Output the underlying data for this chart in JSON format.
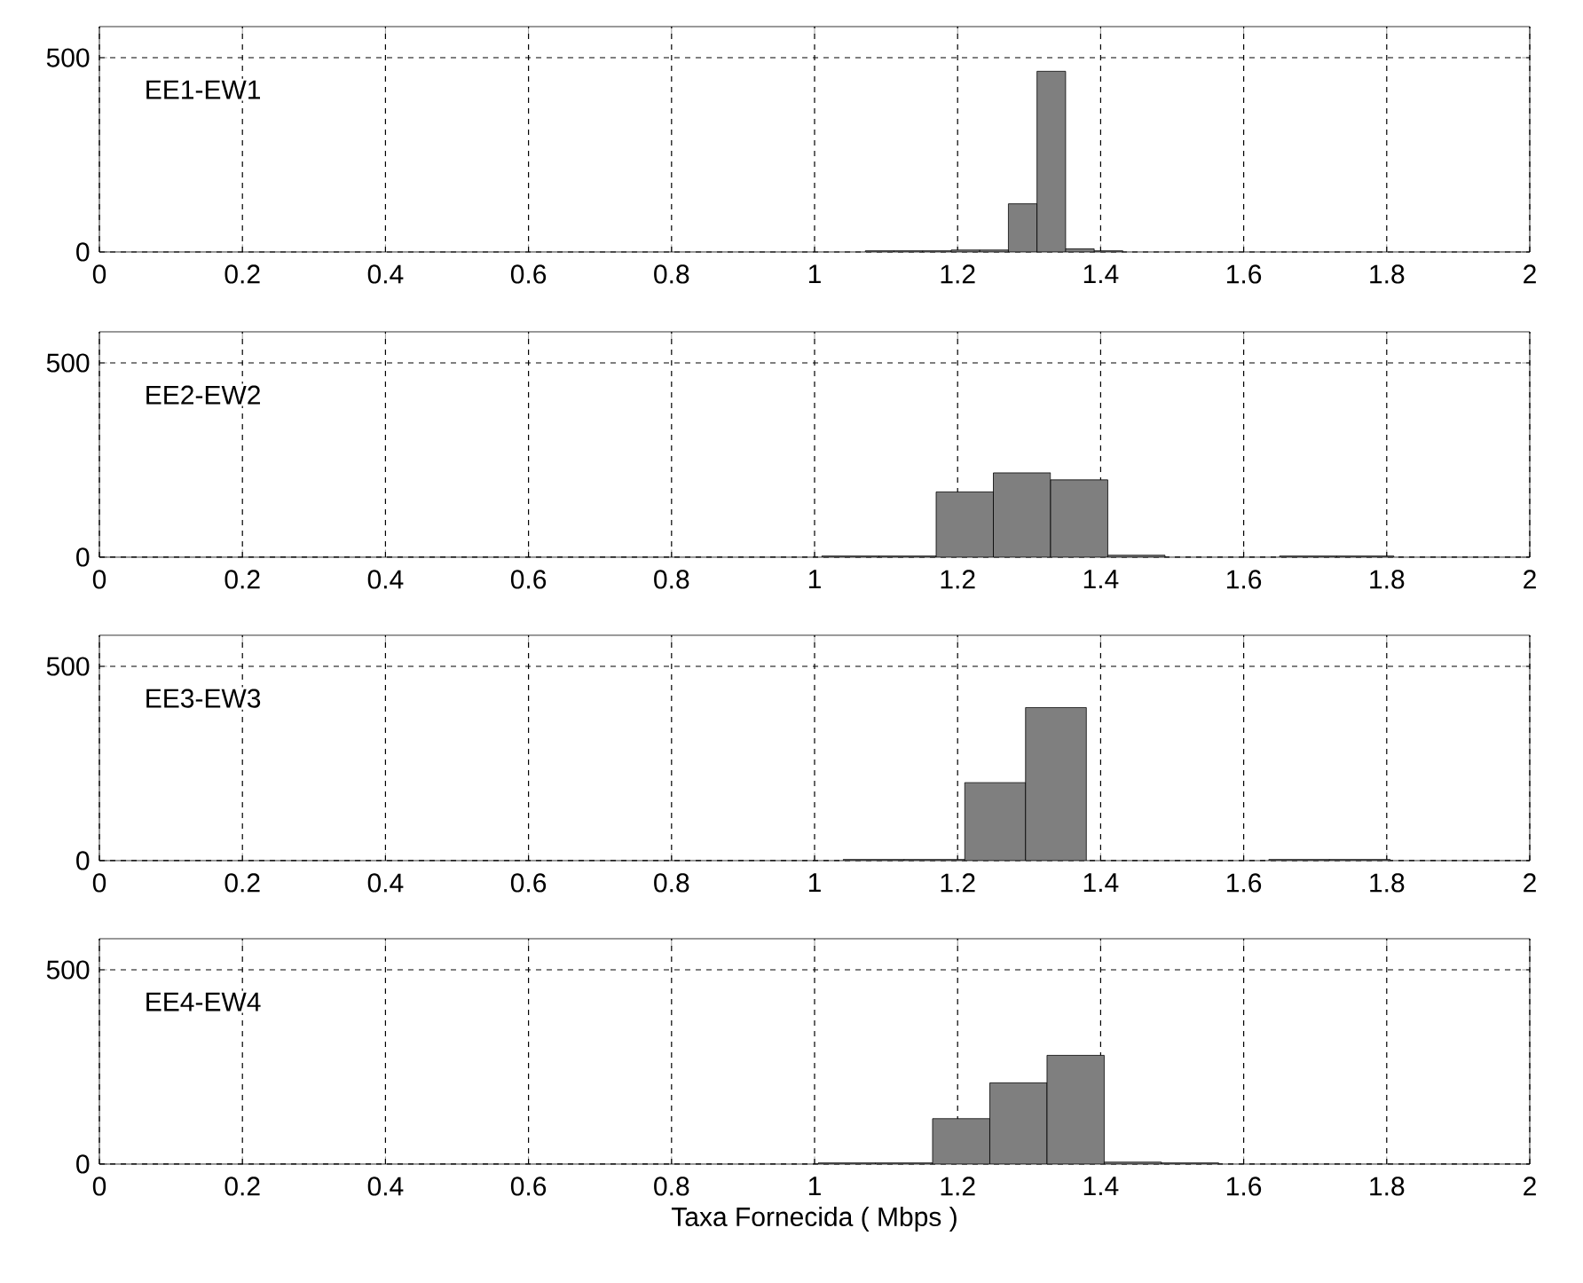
{
  "chart_data": [
    {
      "type": "histogram",
      "annotations": [
        "EE1-EW1"
      ],
      "bins": [
        1.071,
        1.111,
        1.151,
        1.191,
        1.231,
        1.271,
        1.311,
        1.351,
        1.391,
        1.431
      ],
      "values": [
        3,
        3,
        3,
        5,
        5,
        124,
        465,
        8,
        3
      ],
      "color": "#7f7f7f",
      "xlim": [
        0,
        2
      ],
      "ylim": [
        0,
        580
      ],
      "xticks": [
        0,
        0.2,
        0.4,
        0.6,
        0.8,
        1,
        1.2,
        1.4,
        1.6,
        1.8,
        2
      ],
      "yticks": [
        0,
        500
      ],
      "grid": true
    },
    {
      "type": "histogram",
      "annotations": [
        "EE2-EW2"
      ],
      "bins": [
        1.01,
        1.09,
        1.17,
        1.25,
        1.33,
        1.41,
        1.49,
        1.57,
        1.65,
        1.73,
        1.81
      ],
      "values": [
        3,
        3,
        168,
        217,
        199,
        5,
        null,
        null,
        3,
        3
      ],
      "color": "#7f7f7f",
      "xlim": [
        0,
        2
      ],
      "ylim": [
        0,
        580
      ],
      "xticks": [
        0,
        0.2,
        0.4,
        0.6,
        0.8,
        1,
        1.2,
        1.4,
        1.6,
        1.8,
        2
      ],
      "yticks": [
        0,
        500
      ],
      "grid": true
    },
    {
      "type": "histogram",
      "annotations": [
        "EE3-EW3"
      ],
      "bins": [
        1.04,
        1.125,
        1.21,
        1.295,
        1.38,
        1.465,
        1.55,
        1.635,
        1.72,
        1.805
      ],
      "values": [
        3,
        3,
        201,
        394,
        null,
        null,
        null,
        3,
        3
      ],
      "color": "#7f7f7f",
      "xlim": [
        0,
        2
      ],
      "ylim": [
        0,
        580
      ],
      "xticks": [
        0,
        0.2,
        0.4,
        0.6,
        0.8,
        1,
        1.2,
        1.4,
        1.6,
        1.8,
        2
      ],
      "yticks": [
        0,
        500
      ],
      "grid": true
    },
    {
      "type": "histogram",
      "annotations": [
        "EE4-EW4"
      ],
      "xlabel": "Taxa Fornecida ( Mbps )",
      "bins": [
        1.005,
        1.085,
        1.165,
        1.245,
        1.325,
        1.405,
        1.485,
        1.565
      ],
      "values": [
        3,
        3,
        117,
        209,
        280,
        5,
        3
      ],
      "color": "#7f7f7f",
      "xlim": [
        0,
        2
      ],
      "ylim": [
        0,
        580
      ],
      "xticks": [
        0,
        0.2,
        0.4,
        0.6,
        0.8,
        1,
        1.2,
        1.4,
        1.6,
        1.8,
        2
      ],
      "yticks": [
        0,
        500
      ],
      "grid": true
    }
  ]
}
